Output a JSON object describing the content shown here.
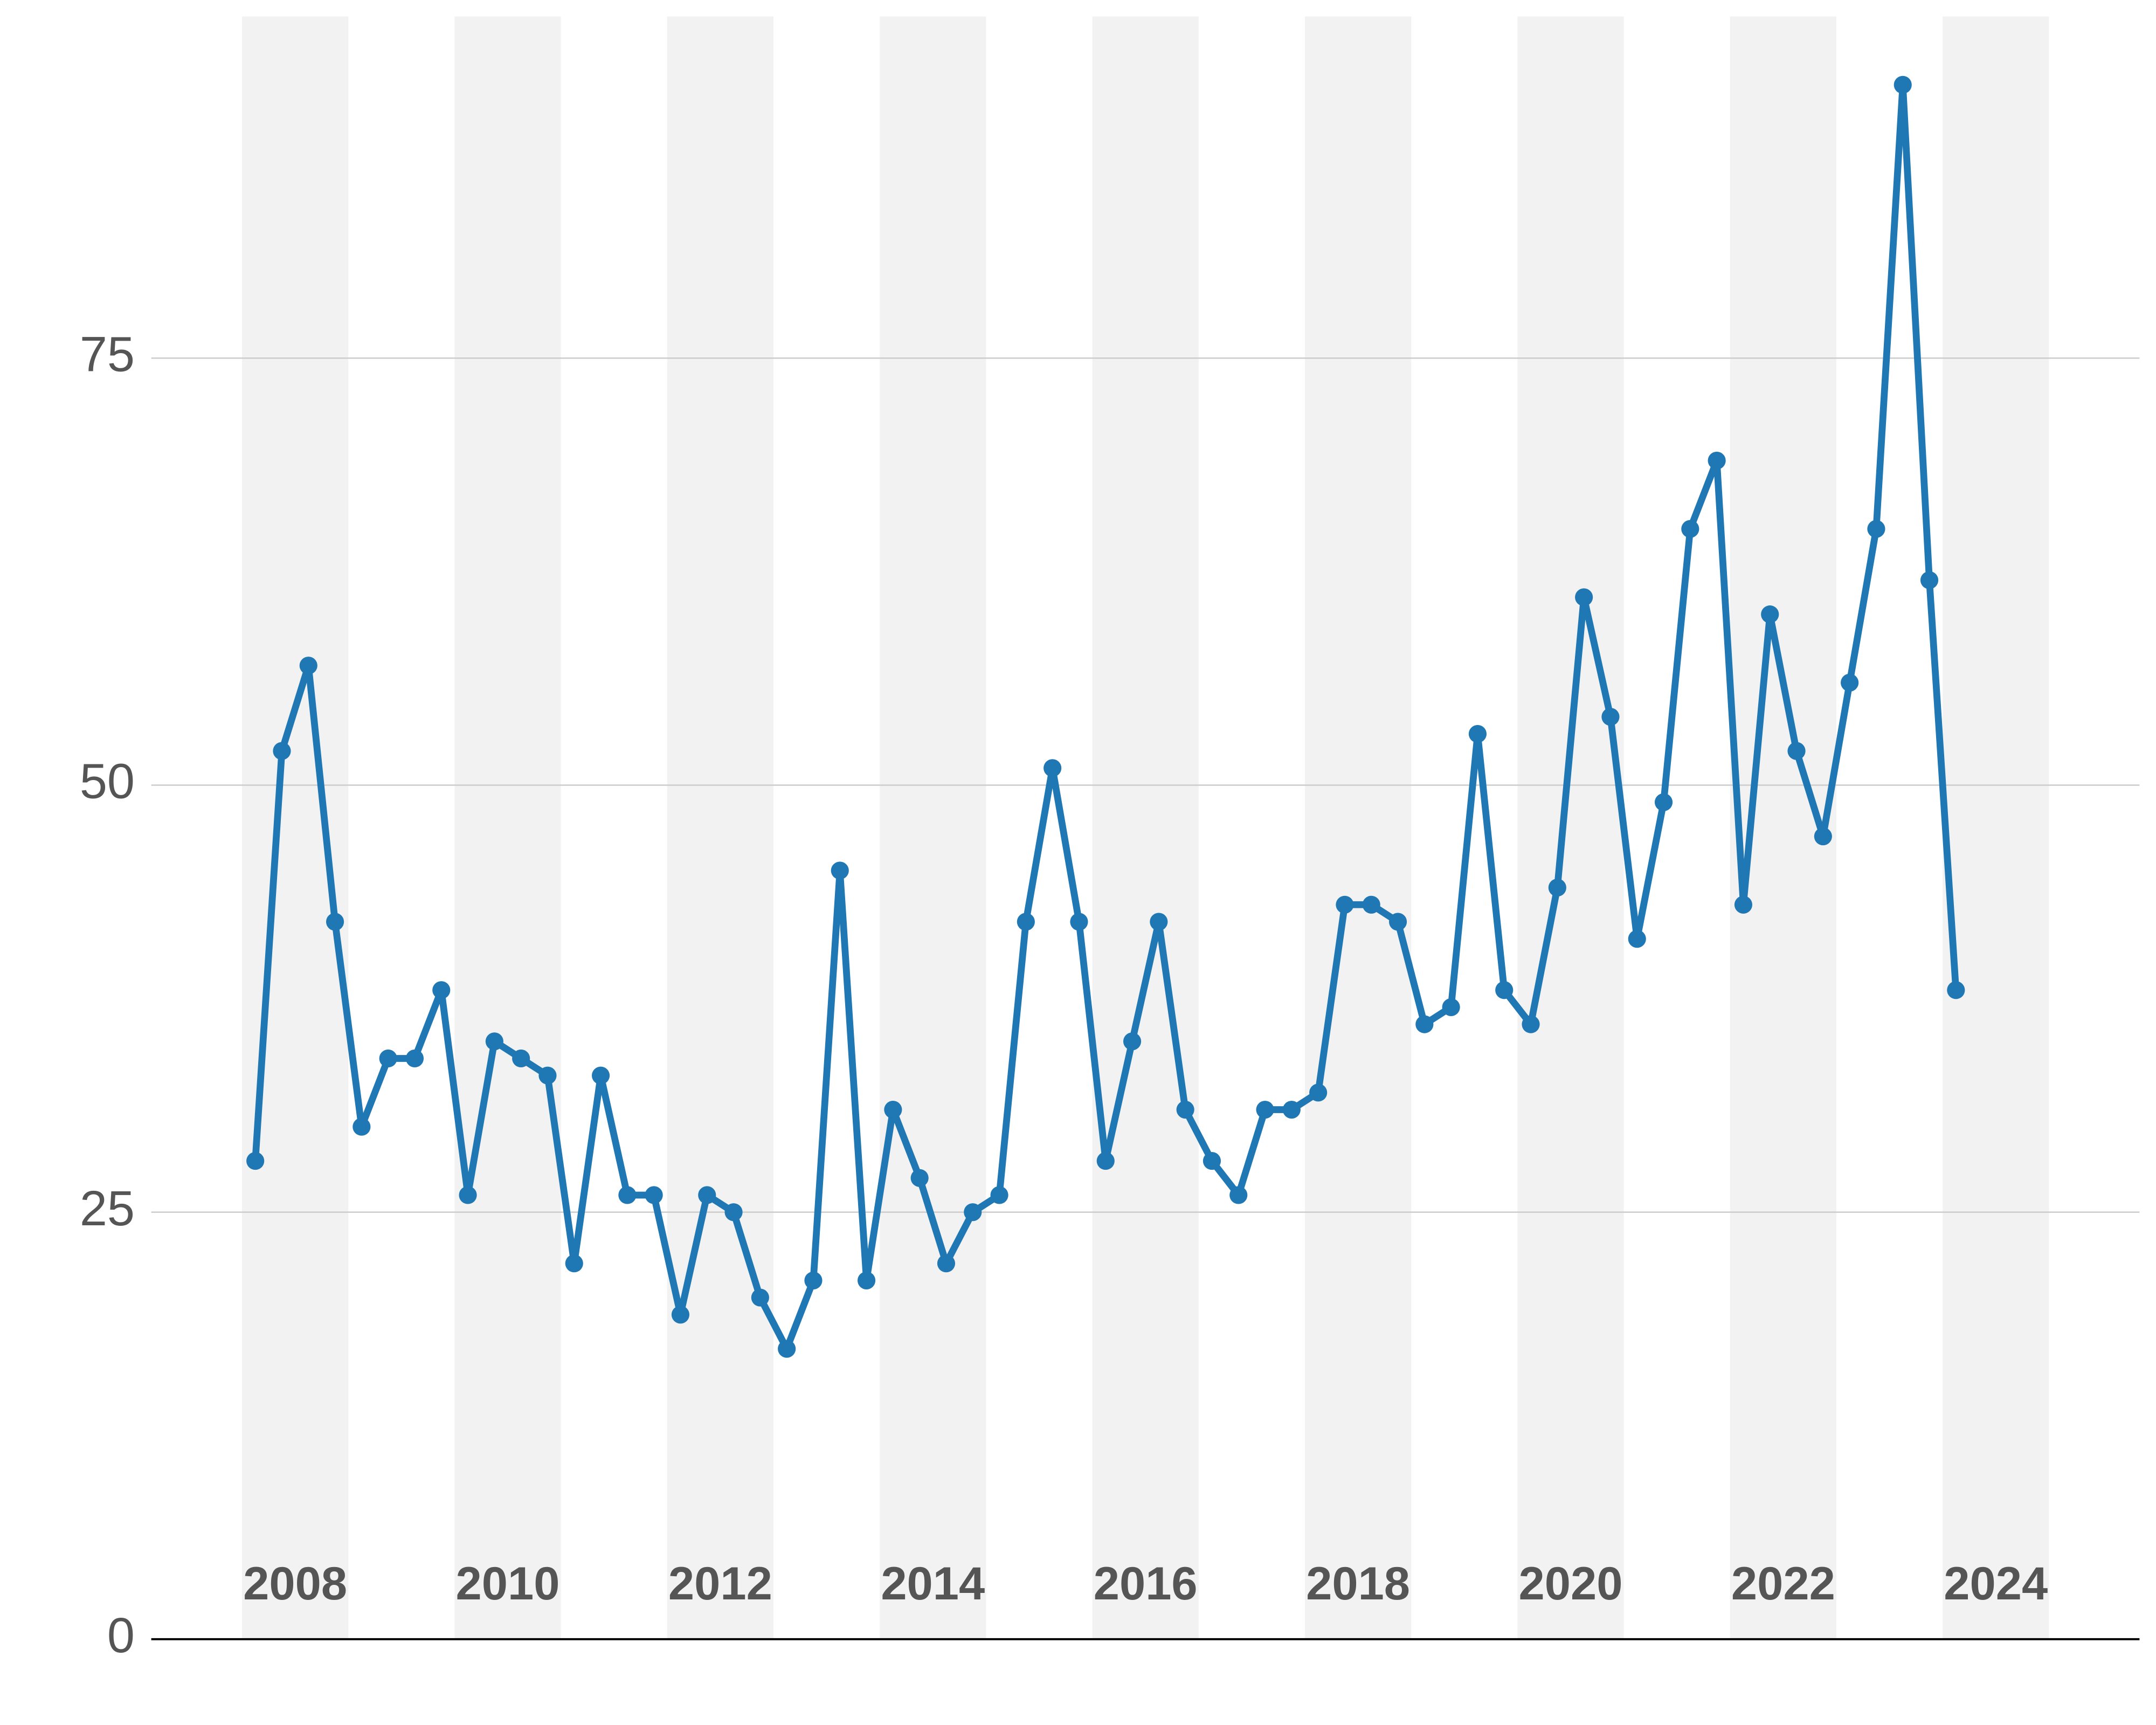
{
  "chart_data": {
    "type": "line",
    "x": [
      2008.125,
      2008.375,
      2008.625,
      2008.875,
      2009.125,
      2009.375,
      2009.625,
      2009.875,
      2010.125,
      2010.375,
      2010.625,
      2010.875,
      2011.125,
      2011.375,
      2011.625,
      2011.875,
      2012.125,
      2012.375,
      2012.625,
      2012.875,
      2013.125,
      2013.375,
      2013.625,
      2013.875,
      2014.125,
      2014.375,
      2014.625,
      2014.875,
      2015.125,
      2015.375,
      2015.625,
      2015.875,
      2016.125,
      2016.375,
      2016.625,
      2016.875,
      2017.125,
      2017.375,
      2017.625,
      2017.875,
      2018.125,
      2018.375,
      2018.625,
      2018.875,
      2019.125,
      2019.375,
      2019.625,
      2019.875,
      2020.125,
      2020.375,
      2020.625,
      2020.875,
      2021.125,
      2021.375,
      2021.625,
      2021.875,
      2022.125,
      2022.375,
      2022.625,
      2022.875,
      2023.125,
      2023.375,
      2023.625,
      2023.875,
      2024.125
    ],
    "series": [
      {
        "color": "#1f77b4",
        "values": [
          28,
          52,
          57,
          42,
          30,
          34,
          34,
          38,
          26,
          35,
          34,
          33,
          22,
          33,
          26,
          26,
          19,
          26,
          25,
          20,
          17,
          21,
          45,
          21,
          31,
          27,
          22,
          25,
          26,
          42,
          51,
          42,
          28,
          35,
          42,
          31,
          28,
          26,
          31,
          31,
          32,
          43,
          43,
          42,
          36,
          37,
          53,
          38,
          36,
          44,
          61,
          54,
          41,
          49,
          65,
          69,
          43,
          60,
          52,
          47,
          56,
          65,
          91,
          62,
          38
        ]
      }
    ],
    "xlim": [
      2007.146,
      2025.852
    ],
    "xticks": [
      2008,
      2010,
      2012,
      2014,
      2016,
      2018,
      2020,
      2022,
      2024
    ],
    "ylim": [
      0,
      95
    ],
    "yticks": [
      0,
      25,
      50,
      75
    ],
    "grid": true
  }
}
